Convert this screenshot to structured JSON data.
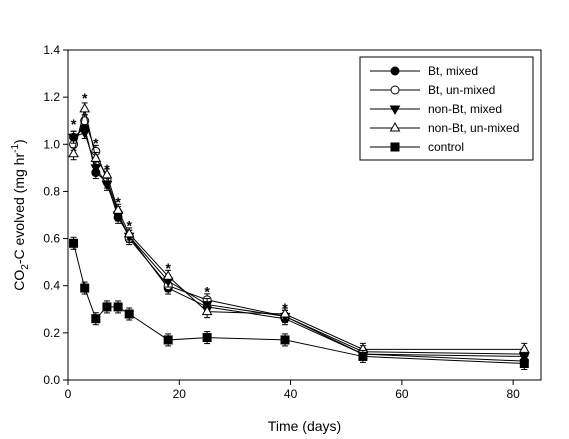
{
  "chart_data": {
    "type": "line",
    "xlabel": "Time (days)",
    "ylabel_parts": {
      "pre": "CO",
      "sub": "2",
      "mid": "-C evolved (mg hr",
      "sup": "-1",
      "post": ")"
    },
    "xlim": [
      0,
      85
    ],
    "ylim": [
      0,
      1.4
    ],
    "xticks": [
      0,
      20,
      40,
      60,
      80
    ],
    "xtick_labels": [
      "0",
      "20",
      "40",
      "60",
      "80"
    ],
    "yticks": [
      0.0,
      0.2,
      0.4,
      0.6,
      0.8,
      1.0,
      1.2,
      1.4
    ],
    "ytick_labels": [
      "0.0",
      "0.2",
      "0.4",
      "0.6",
      "0.8",
      "1.0",
      "1.2",
      "1.4"
    ],
    "grid": false,
    "legend_position": "top-right",
    "series": [
      {
        "name": "Bt, mixed",
        "marker": "circle-filled",
        "x": [
          1,
          3,
          5,
          7,
          9,
          11,
          18,
          25,
          39,
          53,
          82
        ],
        "y": [
          1.03,
          1.07,
          0.88,
          0.84,
          0.69,
          0.61,
          0.39,
          0.31,
          0.26,
          0.11,
          0.08
        ]
      },
      {
        "name": "Bt, un-mixed",
        "marker": "circle-open",
        "x": [
          1,
          3,
          5,
          7,
          9,
          11,
          18,
          25,
          39,
          53,
          82
        ],
        "y": [
          1.0,
          1.1,
          0.97,
          0.85,
          0.71,
          0.6,
          0.4,
          0.34,
          0.27,
          0.12,
          0.11
        ]
      },
      {
        "name": "non-Bt, mixed",
        "marker": "triangle-down-filled",
        "x": [
          1,
          3,
          5,
          7,
          9,
          11,
          18,
          25,
          39,
          53,
          82
        ],
        "y": [
          1.03,
          1.05,
          0.9,
          0.83,
          0.7,
          0.61,
          0.42,
          0.32,
          0.27,
          0.11,
          0.1
        ]
      },
      {
        "name": "non-Bt, un-mixed",
        "marker": "triangle-up-open",
        "x": [
          1,
          3,
          5,
          7,
          9,
          11,
          18,
          25,
          39,
          53,
          82
        ],
        "y": [
          0.96,
          1.15,
          0.94,
          0.87,
          0.72,
          0.62,
          0.44,
          0.29,
          0.28,
          0.13,
          0.13
        ]
      },
      {
        "name": "control",
        "marker": "square-filled",
        "x": [
          1,
          3,
          5,
          7,
          9,
          11,
          18,
          25,
          39,
          53,
          82
        ],
        "y": [
          0.58,
          0.39,
          0.26,
          0.31,
          0.31,
          0.28,
          0.17,
          0.18,
          0.17,
          0.1,
          0.07
        ]
      }
    ],
    "annotations": [
      {
        "text": "*",
        "x": 1,
        "y": 1.09
      },
      {
        "text": "*",
        "x": 3,
        "y": 1.2
      },
      {
        "text": "*",
        "x": 5,
        "y": 1.01
      },
      {
        "text": "*",
        "x": 7,
        "y": 0.9
      },
      {
        "text": "*",
        "x": 9,
        "y": 0.76
      },
      {
        "text": "*",
        "x": 11,
        "y": 0.66
      },
      {
        "text": "*",
        "x": 18,
        "y": 0.48
      },
      {
        "text": "*",
        "x": 25,
        "y": 0.38
      },
      {
        "text": "*",
        "x": 39,
        "y": 0.31
      }
    ]
  }
}
